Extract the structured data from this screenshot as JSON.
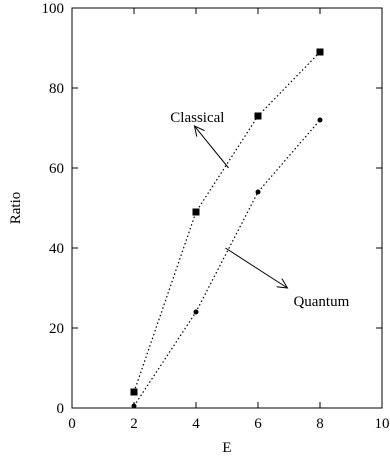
{
  "chart_data": {
    "type": "line",
    "title": "",
    "xlabel": "E",
    "ylabel": "Ratio",
    "xlim": [
      0,
      10
    ],
    "ylim": [
      0,
      100
    ],
    "x_ticks": [
      0,
      2,
      4,
      6,
      8,
      10
    ],
    "y_ticks": [
      0,
      20,
      40,
      60,
      80,
      100
    ],
    "x_tick_labels": [
      "0",
      "2",
      "4",
      "6",
      "8",
      "10"
    ],
    "y_tick_labels": [
      "0",
      "20",
      "40",
      "60",
      "80",
      "100"
    ],
    "grid": false,
    "legend": "none",
    "series": [
      {
        "name": "Classical",
        "marker": "square",
        "line_style": "dotted",
        "color": "#000000",
        "x": [
          2,
          4,
          6,
          8
        ],
        "y": [
          4,
          49,
          73,
          89
        ]
      },
      {
        "name": "Quantum",
        "marker": "circle",
        "line_style": "dotted",
        "color": "#000000",
        "x": [
          2,
          4,
          6,
          8
        ],
        "y": [
          0.5,
          24,
          54,
          72
        ]
      }
    ],
    "annotations": [
      {
        "series_index": 0,
        "text": "Classical",
        "arrow_from": [
          5.05,
          60
        ],
        "arrow_to": [
          3.95,
          70.5
        ]
      },
      {
        "series_index": 1,
        "text": "Quantum",
        "arrow_from": [
          4.95,
          40
        ],
        "arrow_to": [
          6.95,
          30
        ]
      }
    ]
  }
}
